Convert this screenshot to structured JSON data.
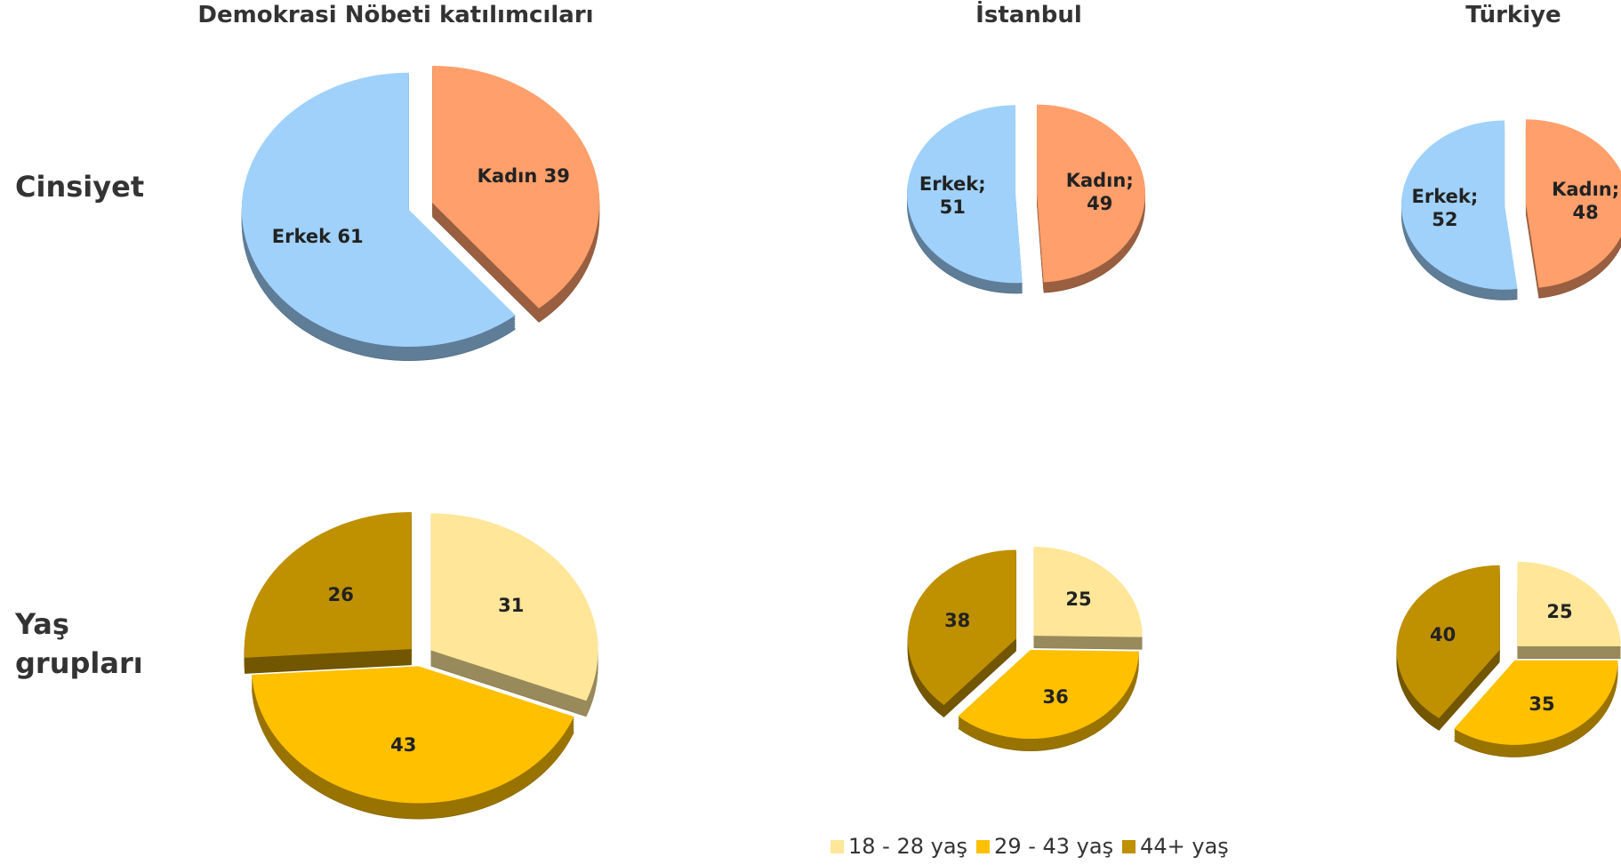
{
  "columns": [
    "Demokrasi Nöbeti katılımcıları",
    "İstanbul",
    "Türkiye"
  ],
  "rows": [
    "Cinsiyet",
    "Yaş grupları"
  ],
  "legend": {
    "labels": [
      "18 - 28 yaş",
      "29 - 43 yaş",
      "44+ yaş"
    ]
  },
  "chart_data": [
    {
      "type": "pie",
      "values": [
        61,
        39
      ],
      "value_labels": [
        "Erkek 61",
        "Kadın 39"
      ],
      "colors": [
        "#9fd1fb",
        "#ff9f6b"
      ]
    },
    {
      "type": "pie",
      "values": [
        51,
        49
      ],
      "value_labels": [
        "Erkek; 51",
        "Kadın; 49"
      ],
      "colors": [
        "#9fd1fb",
        "#ff9f6b"
      ]
    },
    {
      "type": "pie",
      "values": [
        52,
        48
      ],
      "value_labels": [
        "Erkek; 52",
        "Kadın; 48"
      ],
      "colors": [
        "#9fd1fb",
        "#ff9f6b"
      ]
    },
    {
      "type": "pie",
      "values": [
        31,
        43,
        26
      ],
      "colors": [
        "#ffe699",
        "#ffc000",
        "#bf9000"
      ]
    },
    {
      "type": "pie",
      "values": [
        25,
        36,
        38
      ],
      "colors": [
        "#ffe699",
        "#ffc000",
        "#bf9000"
      ]
    },
    {
      "type": "pie",
      "values": [
        25,
        35,
        40
      ],
      "colors": [
        "#ffe699",
        "#ffc000",
        "#bf9000"
      ]
    }
  ]
}
